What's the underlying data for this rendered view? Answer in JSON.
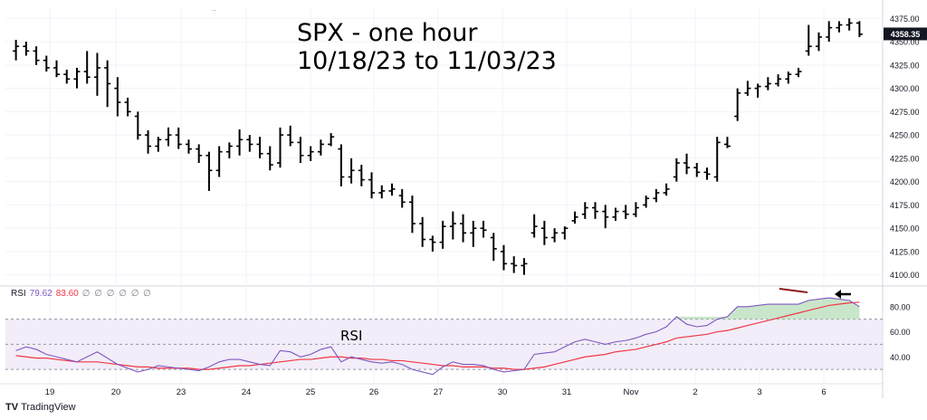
{
  "title_line1": "SPX - one hour",
  "title_line2": "10/18/23 to 11/03/23",
  "price_tag": "4358.35",
  "rsi_legend": {
    "name": "RSI",
    "value1": "79.62",
    "value2": "83.60",
    "placeholders": "∅ ∅ ∅ ∅ ∅ ∅"
  },
  "rsi_panel_label": "RSI",
  "brand": "TradingView",
  "colors": {
    "bars": "#000000",
    "rsi": "#7e57c2",
    "rsi_ma": "#f23645",
    "divergence": "#8b1a1a",
    "rsi_band": "#ede7f6",
    "arrow": "#000000"
  },
  "chart_data": [
    {
      "type": "ohlc",
      "title": "SPX - one hour 10/18/23 to 11/03/23",
      "x_labels": [
        "19",
        "20",
        "23",
        "24",
        "25",
        "26",
        "27",
        "30",
        "31",
        "Nov",
        "2",
        "3",
        "6"
      ],
      "y_ticks": [
        4100,
        4125,
        4150,
        4175,
        4200,
        4225,
        4250,
        4275,
        4300,
        4325,
        4350,
        4375
      ],
      "ylim": [
        4090,
        4385
      ],
      "last_price": 4358.35,
      "bars": [
        [
          4340,
          4352,
          4330,
          4345
        ],
        [
          4345,
          4350,
          4335,
          4340
        ],
        [
          4340,
          4345,
          4325,
          4330
        ],
        [
          4330,
          4335,
          4318,
          4322
        ],
        [
          4322,
          4330,
          4312,
          4315
        ],
        [
          4315,
          4320,
          4305,
          4310
        ],
        [
          4310,
          4322,
          4300,
          4318
        ],
        [
          4318,
          4340,
          4305,
          4312
        ],
        [
          4312,
          4338,
          4292,
          4322
        ],
        [
          4322,
          4330,
          4280,
          4305
        ],
        [
          4300,
          4312,
          4270,
          4285
        ],
        [
          4285,
          4290,
          4270,
          4275
        ],
        [
          4270,
          4275,
          4245,
          4250
        ],
        [
          4250,
          4255,
          4230,
          4238
        ],
        [
          4238,
          4248,
          4232,
          4245
        ],
        [
          4245,
          4258,
          4238,
          4250
        ],
        [
          4250,
          4258,
          4235,
          4240
        ],
        [
          4240,
          4245,
          4230,
          4235
        ],
        [
          4235,
          4240,
          4220,
          4228
        ],
        [
          4228,
          4232,
          4190,
          4212
        ],
        [
          4212,
          4238,
          4205,
          4232
        ],
        [
          4232,
          4242,
          4225,
          4238
        ],
        [
          4238,
          4256,
          4228,
          4245
        ],
        [
          4245,
          4250,
          4232,
          4240
        ],
        [
          4240,
          4248,
          4225,
          4230
        ],
        [
          4230,
          4238,
          4212,
          4218
        ],
        [
          4220,
          4258,
          4215,
          4250
        ],
        [
          4250,
          4260,
          4238,
          4242
        ],
        [
          4242,
          4248,
          4220,
          4228
        ],
        [
          4228,
          4238,
          4222,
          4232
        ],
        [
          4232,
          4245,
          4228,
          4240
        ],
        [
          4240,
          4252,
          4238,
          4248
        ],
        [
          4235,
          4240,
          4195,
          4205
        ],
        [
          4205,
          4225,
          4198,
          4212
        ],
        [
          4212,
          4218,
          4195,
          4202
        ],
        [
          4202,
          4210,
          4182,
          4188
        ],
        [
          4188,
          4196,
          4182,
          4190
        ],
        [
          4190,
          4198,
          4185,
          4192
        ],
        [
          4185,
          4192,
          4172,
          4178
        ],
        [
          4178,
          4185,
          4145,
          4155
        ],
        [
          4155,
          4162,
          4130,
          4138
        ],
        [
          4138,
          4142,
          4125,
          4135
        ],
        [
          4135,
          4158,
          4128,
          4152
        ],
        [
          4152,
          4168,
          4138,
          4155
        ],
        [
          4155,
          4165,
          4135,
          4145
        ],
        [
          4145,
          4158,
          4130,
          4150
        ],
        [
          4150,
          4158,
          4140,
          4148
        ],
        [
          4140,
          4145,
          4115,
          4128
        ],
        [
          4125,
          4132,
          4105,
          4112
        ],
        [
          4112,
          4120,
          4102,
          4110
        ],
        [
          4110,
          4118,
          4100,
          4112
        ],
        [
          4145,
          4165,
          4140,
          4152
        ],
        [
          4150,
          4158,
          4132,
          4140
        ],
        [
          4140,
          4150,
          4135,
          4145
        ],
        [
          4145,
          4152,
          4138,
          4150
        ],
        [
          4158,
          4168,
          4155,
          4162
        ],
        [
          4165,
          4178,
          4160,
          4172
        ],
        [
          4172,
          4178,
          4160,
          4168
        ],
        [
          4168,
          4175,
          4150,
          4162
        ],
        [
          4162,
          4172,
          4158,
          4168
        ],
        [
          4168,
          4175,
          4160,
          4165
        ],
        [
          4165,
          4178,
          4162,
          4172
        ],
        [
          4175,
          4185,
          4172,
          4182
        ],
        [
          4182,
          4192,
          4178,
          4188
        ],
        [
          4188,
          4198,
          4185,
          4192
        ],
        [
          4205,
          4225,
          4200,
          4220
        ],
        [
          4220,
          4230,
          4208,
          4215
        ],
        [
          4215,
          4220,
          4205,
          4210
        ],
        [
          4210,
          4215,
          4202,
          4208
        ],
        [
          4205,
          4248,
          4200,
          4242
        ],
        [
          4240,
          4248,
          4236,
          4238
        ],
        [
          4270,
          4300,
          4265,
          4295
        ],
        [
          4295,
          4308,
          4292,
          4300
        ],
        [
          4300,
          4305,
          4290,
          4302
        ],
        [
          4302,
          4312,
          4298,
          4305
        ],
        [
          4305,
          4315,
          4302,
          4310
        ],
        [
          4310,
          4318,
          4305,
          4315
        ],
        [
          4315,
          4322,
          4312,
          4318
        ],
        [
          4340,
          4368,
          4335,
          4345
        ],
        [
          4345,
          4360,
          4340,
          4355
        ],
        [
          4355,
          4372,
          4350,
          4365
        ],
        [
          4365,
          4372,
          4360,
          4368
        ],
        [
          4368,
          4375,
          4362,
          4370
        ],
        [
          4370,
          4372,
          4355,
          4358
        ]
      ]
    },
    {
      "type": "line",
      "title": "RSI",
      "ylim": [
        20,
        95
      ],
      "y_ticks": [
        40,
        60,
        80
      ],
      "band": [
        30,
        70
      ],
      "midline": 50,
      "series": [
        {
          "name": "RSI",
          "values": [
            45,
            48,
            46,
            42,
            40,
            38,
            36,
            40,
            44,
            39,
            34,
            31,
            28,
            30,
            33,
            32,
            31,
            30,
            29,
            32,
            36,
            38,
            38,
            36,
            34,
            33,
            45,
            44,
            40,
            42,
            46,
            48,
            36,
            40,
            38,
            36,
            35,
            36,
            34,
            30,
            28,
            26,
            32,
            36,
            34,
            34,
            33,
            30,
            28,
            29,
            30,
            42,
            43,
            44,
            48,
            52,
            54,
            52,
            50,
            52,
            53,
            55,
            58,
            60,
            64,
            72,
            66,
            64,
            65,
            70,
            72,
            80,
            80,
            81,
            82,
            82,
            82,
            82,
            85,
            86,
            87,
            86,
            85,
            80
          ]
        },
        {
          "name": "RSI MA",
          "values": [
            41,
            40,
            39,
            39,
            38,
            37,
            36,
            36,
            36,
            35,
            34,
            33,
            32,
            32,
            31,
            31,
            31,
            31,
            30,
            30,
            31,
            32,
            33,
            33,
            34,
            35,
            36,
            37,
            38,
            38,
            39,
            40,
            40,
            39,
            39,
            38,
            38,
            37,
            37,
            36,
            35,
            34,
            33,
            33,
            32,
            32,
            32,
            31,
            31,
            30,
            30,
            31,
            32,
            34,
            36,
            38,
            40,
            41,
            42,
            44,
            45,
            46,
            48,
            50,
            52,
            55,
            56,
            57,
            58,
            60,
            61,
            63,
            65,
            67,
            69,
            71,
            73,
            75,
            77,
            79,
            81,
            82,
            83,
            83.6
          ]
        }
      ]
    }
  ]
}
